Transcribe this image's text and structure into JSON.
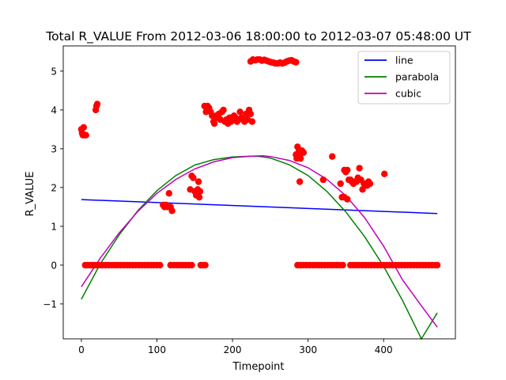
{
  "chart_data": {
    "type": "scatter",
    "title": "Total R_VALUE From 2012-03-06 18:00:00 to 2012-03-07 05:48:00 UT",
    "xlabel": "Timepoint",
    "ylabel": "R_VALUE",
    "xlim": [
      -24,
      495
    ],
    "ylim": [
      -1.9,
      5.65
    ],
    "xticks": [
      0,
      100,
      200,
      300,
      400
    ],
    "yticks": [
      -1,
      0,
      1,
      2,
      3,
      4,
      5
    ],
    "grid": false,
    "legend_position": "top-right",
    "scatter": {
      "color": "#ff0000",
      "points": [
        [
          0,
          3.5
        ],
        [
          1,
          3.4
        ],
        [
          2,
          3.35
        ],
        [
          3,
          3.55
        ],
        [
          4,
          3.35
        ],
        [
          6,
          3.35
        ],
        [
          5,
          0
        ],
        [
          8,
          0
        ],
        [
          11,
          0
        ],
        [
          14,
          0
        ],
        [
          17,
          0
        ],
        [
          20,
          0
        ],
        [
          24,
          0
        ],
        [
          28,
          0
        ],
        [
          32,
          0
        ],
        [
          36,
          0
        ],
        [
          40,
          0
        ],
        [
          44,
          0
        ],
        [
          48,
          0
        ],
        [
          52,
          0
        ],
        [
          56,
          0
        ],
        [
          60,
          0
        ],
        [
          64,
          0
        ],
        [
          68,
          0
        ],
        [
          72,
          0
        ],
        [
          76,
          0
        ],
        [
          80,
          0
        ],
        [
          84,
          0
        ],
        [
          88,
          0
        ],
        [
          92,
          0
        ],
        [
          96,
          0
        ],
        [
          100,
          0
        ],
        [
          104,
          0
        ],
        [
          19,
          4.0
        ],
        [
          20,
          4.1
        ],
        [
          21,
          4.15
        ],
        [
          108,
          1.55
        ],
        [
          110,
          1.5
        ],
        [
          112,
          1.55
        ],
        [
          114,
          1.5
        ],
        [
          116,
          1.85
        ],
        [
          118,
          1.5
        ],
        [
          120,
          1.4
        ],
        [
          118,
          0
        ],
        [
          122,
          0
        ],
        [
          126,
          0
        ],
        [
          130,
          0
        ],
        [
          134,
          0
        ],
        [
          138,
          0
        ],
        [
          142,
          0
        ],
        [
          146,
          0
        ],
        [
          144,
          1.95
        ],
        [
          146,
          2.3
        ],
        [
          148,
          2.25
        ],
        [
          150,
          1.9
        ],
        [
          152,
          1.8
        ],
        [
          154,
          1.95
        ],
        [
          155,
          2.15
        ],
        [
          156,
          1.75
        ],
        [
          157,
          1.9
        ],
        [
          158,
          0
        ],
        [
          161,
          0
        ],
        [
          164,
          0
        ],
        [
          163,
          4.1
        ],
        [
          165,
          3.95
        ],
        [
          167,
          4.1
        ],
        [
          169,
          4.05
        ],
        [
          171,
          3.95
        ],
        [
          173,
          3.85
        ],
        [
          175,
          3.7
        ],
        [
          176,
          3.65
        ],
        [
          178,
          3.85
        ],
        [
          180,
          3.8
        ],
        [
          182,
          3.9
        ],
        [
          184,
          3.75
        ],
        [
          186,
          3.95
        ],
        [
          188,
          4.0
        ],
        [
          190,
          3.7
        ],
        [
          192,
          3.75
        ],
        [
          194,
          3.65
        ],
        [
          196,
          3.8
        ],
        [
          198,
          3.7
        ],
        [
          200,
          3.75
        ],
        [
          202,
          3.85
        ],
        [
          204,
          3.8
        ],
        [
          206,
          3.7
        ],
        [
          208,
          3.75
        ],
        [
          210,
          3.95
        ],
        [
          212,
          3.8
        ],
        [
          214,
          3.75
        ],
        [
          216,
          3.7
        ],
        [
          218,
          3.9
        ],
        [
          220,
          3.75
        ],
        [
          222,
          4.0
        ],
        [
          224,
          3.9
        ],
        [
          226,
          3.7
        ],
        [
          224,
          5.25
        ],
        [
          227,
          5.3
        ],
        [
          230,
          5.28
        ],
        [
          233,
          5.3
        ],
        [
          236,
          5.3
        ],
        [
          239,
          5.27
        ],
        [
          242,
          5.29
        ],
        [
          245,
          5.27
        ],
        [
          248,
          5.25
        ],
        [
          251,
          5.23
        ],
        [
          254,
          5.22
        ],
        [
          257,
          5.2
        ],
        [
          260,
          5.2
        ],
        [
          263,
          5.22
        ],
        [
          266,
          5.2
        ],
        [
          269,
          5.22
        ],
        [
          272,
          5.25
        ],
        [
          275,
          5.27
        ],
        [
          278,
          5.28
        ],
        [
          281,
          5.25
        ],
        [
          284,
          5.23
        ],
        [
          284,
          2.85
        ],
        [
          285,
          2.75
        ],
        [
          286,
          3.05
        ],
        [
          287,
          2.85
        ],
        [
          288,
          2.95
        ],
        [
          289,
          2.8
        ],
        [
          290,
          2.75
        ],
        [
          292,
          2.95
        ],
        [
          294,
          2.9
        ],
        [
          289,
          2.15
        ],
        [
          286,
          0
        ],
        [
          290,
          0
        ],
        [
          294,
          0
        ],
        [
          298,
          0
        ],
        [
          302,
          0
        ],
        [
          306,
          0
        ],
        [
          310,
          0
        ],
        [
          314,
          0
        ],
        [
          318,
          0
        ],
        [
          322,
          0
        ],
        [
          326,
          0
        ],
        [
          330,
          0
        ],
        [
          334,
          0
        ],
        [
          338,
          0
        ],
        [
          342,
          0
        ],
        [
          346,
          0
        ],
        [
          332,
          2.8
        ],
        [
          320,
          2.2
        ],
        [
          343,
          2.1
        ],
        [
          345,
          1.75
        ],
        [
          348,
          1.75
        ],
        [
          352,
          1.7
        ],
        [
          348,
          2.45
        ],
        [
          350,
          2.4
        ],
        [
          352,
          2.45
        ],
        [
          354,
          2.2
        ],
        [
          356,
          2.2
        ],
        [
          358,
          2.15
        ],
        [
          360,
          2.1
        ],
        [
          362,
          2.15
        ],
        [
          364,
          2.15
        ],
        [
          366,
          2.25
        ],
        [
          368,
          2.5
        ],
        [
          370,
          2.2
        ],
        [
          372,
          1.95
        ],
        [
          374,
          2.1
        ],
        [
          376,
          2.1
        ],
        [
          378,
          2.05
        ],
        [
          380,
          2.15
        ],
        [
          382,
          2.1
        ],
        [
          401,
          2.35
        ],
        [
          356,
          0
        ],
        [
          360,
          0
        ],
        [
          364,
          0
        ],
        [
          368,
          0
        ],
        [
          372,
          0
        ],
        [
          376,
          0
        ],
        [
          380,
          0
        ],
        [
          384,
          0
        ],
        [
          388,
          0
        ],
        [
          392,
          0
        ],
        [
          396,
          0
        ],
        [
          400,
          0
        ],
        [
          404,
          0
        ],
        [
          408,
          0
        ],
        [
          412,
          0
        ],
        [
          416,
          0
        ],
        [
          420,
          0
        ],
        [
          424,
          0
        ],
        [
          428,
          0
        ],
        [
          432,
          0
        ],
        [
          436,
          0
        ],
        [
          440,
          0
        ],
        [
          444,
          0
        ],
        [
          448,
          0
        ],
        [
          452,
          0
        ],
        [
          456,
          0
        ],
        [
          460,
          0
        ],
        [
          464,
          0
        ],
        [
          468,
          0
        ],
        [
          471,
          0
        ]
      ]
    },
    "series": [
      {
        "name": "line",
        "color": "#0000ff",
        "type": "line",
        "x": [
          0,
          471
        ],
        "y": [
          1.69,
          1.33
        ]
      },
      {
        "name": "parabola",
        "color": "#008000",
        "type": "line",
        "x": [
          0,
          25,
          50,
          75,
          100,
          125,
          150,
          175,
          200,
          225,
          237,
          250,
          275,
          300,
          325,
          350,
          375,
          400,
          425,
          450,
          471
        ],
        "y": [
          -0.88,
          0.03,
          0.78,
          1.41,
          1.92,
          2.31,
          2.58,
          2.72,
          2.79,
          2.81,
          2.8,
          2.76,
          2.59,
          2.31,
          1.9,
          1.37,
          0.73,
          -0.03,
          -0.91,
          -1.9,
          -1.23
        ]
      },
      {
        "name": "cubic",
        "color": "#bf00bf",
        "type": "line",
        "x": [
          0,
          25,
          50,
          75,
          100,
          125,
          150,
          175,
          200,
          225,
          240,
          250,
          275,
          300,
          325,
          350,
          375,
          400,
          425,
          450,
          471
        ],
        "y": [
          -0.56,
          0.18,
          0.83,
          1.39,
          1.85,
          2.21,
          2.48,
          2.66,
          2.77,
          2.81,
          2.82,
          2.8,
          2.7,
          2.51,
          2.21,
          1.79,
          1.22,
          0.49,
          -0.38,
          -1.05,
          -1.6
        ]
      }
    ],
    "legend": [
      {
        "label": "line",
        "color": "#0000ff"
      },
      {
        "label": "parabola",
        "color": "#008000"
      },
      {
        "label": "cubic",
        "color": "#bf00bf"
      }
    ]
  }
}
